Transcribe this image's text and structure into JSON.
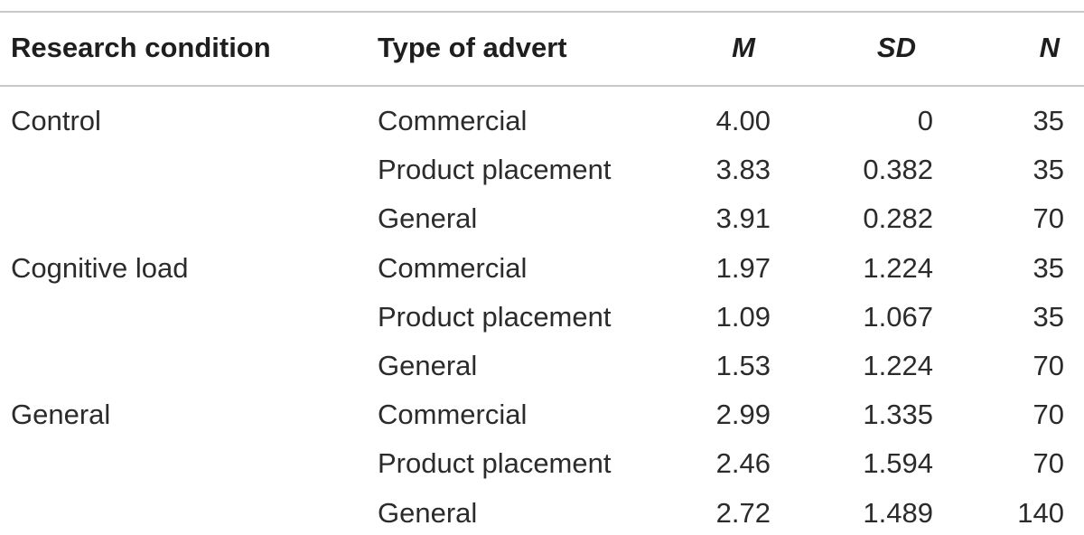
{
  "headers": {
    "condition": "Research condition",
    "type": "Type of advert",
    "m": "M",
    "sd": "SD",
    "n": "N"
  },
  "rows": [
    {
      "condition": "Control",
      "type": "Commercial",
      "m": "4.00",
      "sd": "0",
      "n": "35"
    },
    {
      "condition": "",
      "type": "Product placement",
      "m": "3.83",
      "sd": "0.382",
      "n": "35"
    },
    {
      "condition": "",
      "type": "General",
      "m": "3.91",
      "sd": "0.282",
      "n": "70"
    },
    {
      "condition": "Cognitive load",
      "type": "Commercial",
      "m": "1.97",
      "sd": "1.224",
      "n": "35"
    },
    {
      "condition": "",
      "type": "Product placement",
      "m": "1.09",
      "sd": "1.067",
      "n": "35"
    },
    {
      "condition": "",
      "type": "General",
      "m": "1.53",
      "sd": "1.224",
      "n": "70"
    },
    {
      "condition": "General",
      "type": "Commercial",
      "m": "2.99",
      "sd": "1.335",
      "n": "70"
    },
    {
      "condition": "",
      "type": "Product placement",
      "m": "2.46",
      "sd": "1.594",
      "n": "70"
    },
    {
      "condition": "",
      "type": "General",
      "m": "2.72",
      "sd": "1.489",
      "n": "140"
    }
  ]
}
